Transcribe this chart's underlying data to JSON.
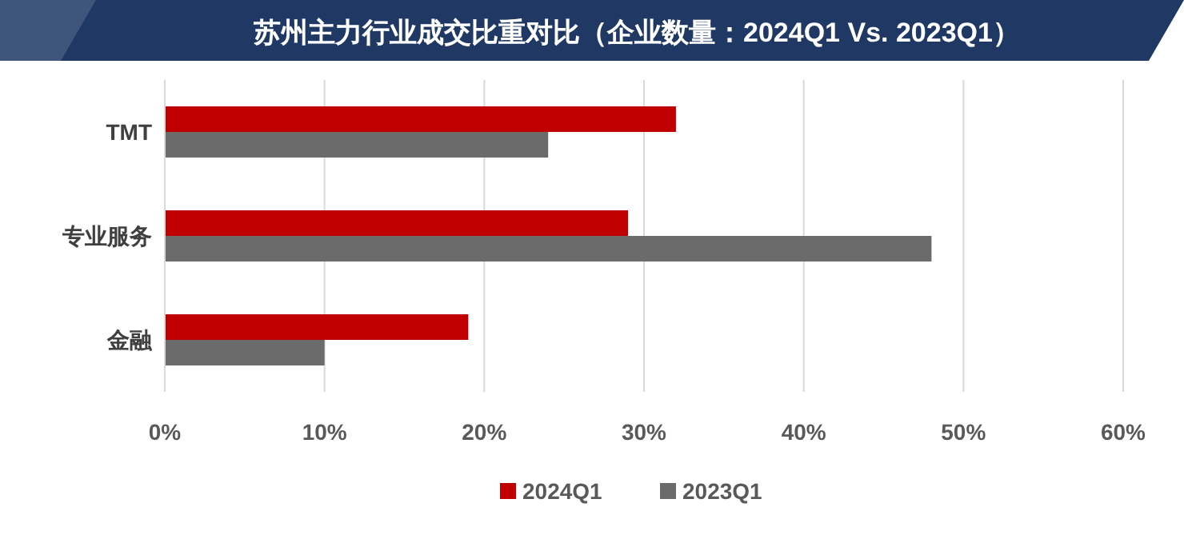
{
  "chart_data": {
    "type": "bar",
    "orientation": "horizontal",
    "title": "苏州主力行业成交比重对比（企业数量：2024Q1 Vs. 2023Q1）",
    "categories": [
      "TMT",
      "专业服务",
      "金融"
    ],
    "series": [
      {
        "name": "2024Q1",
        "color": "#c00000",
        "values": [
          32,
          29,
          19
        ]
      },
      {
        "name": "2023Q1",
        "color": "#6b6b6b",
        "values": [
          24,
          48,
          10
        ]
      }
    ],
    "xlim": [
      0,
      60
    ],
    "xticks": [
      {
        "value": 0,
        "label": "0%"
      },
      {
        "value": 10,
        "label": "10%"
      },
      {
        "value": 20,
        "label": "20%"
      },
      {
        "value": 30,
        "label": "30%"
      },
      {
        "value": 40,
        "label": "40%"
      },
      {
        "value": 50,
        "label": "50%"
      },
      {
        "value": 60,
        "label": "60%"
      }
    ],
    "grid": "x",
    "legend": "bottom"
  }
}
